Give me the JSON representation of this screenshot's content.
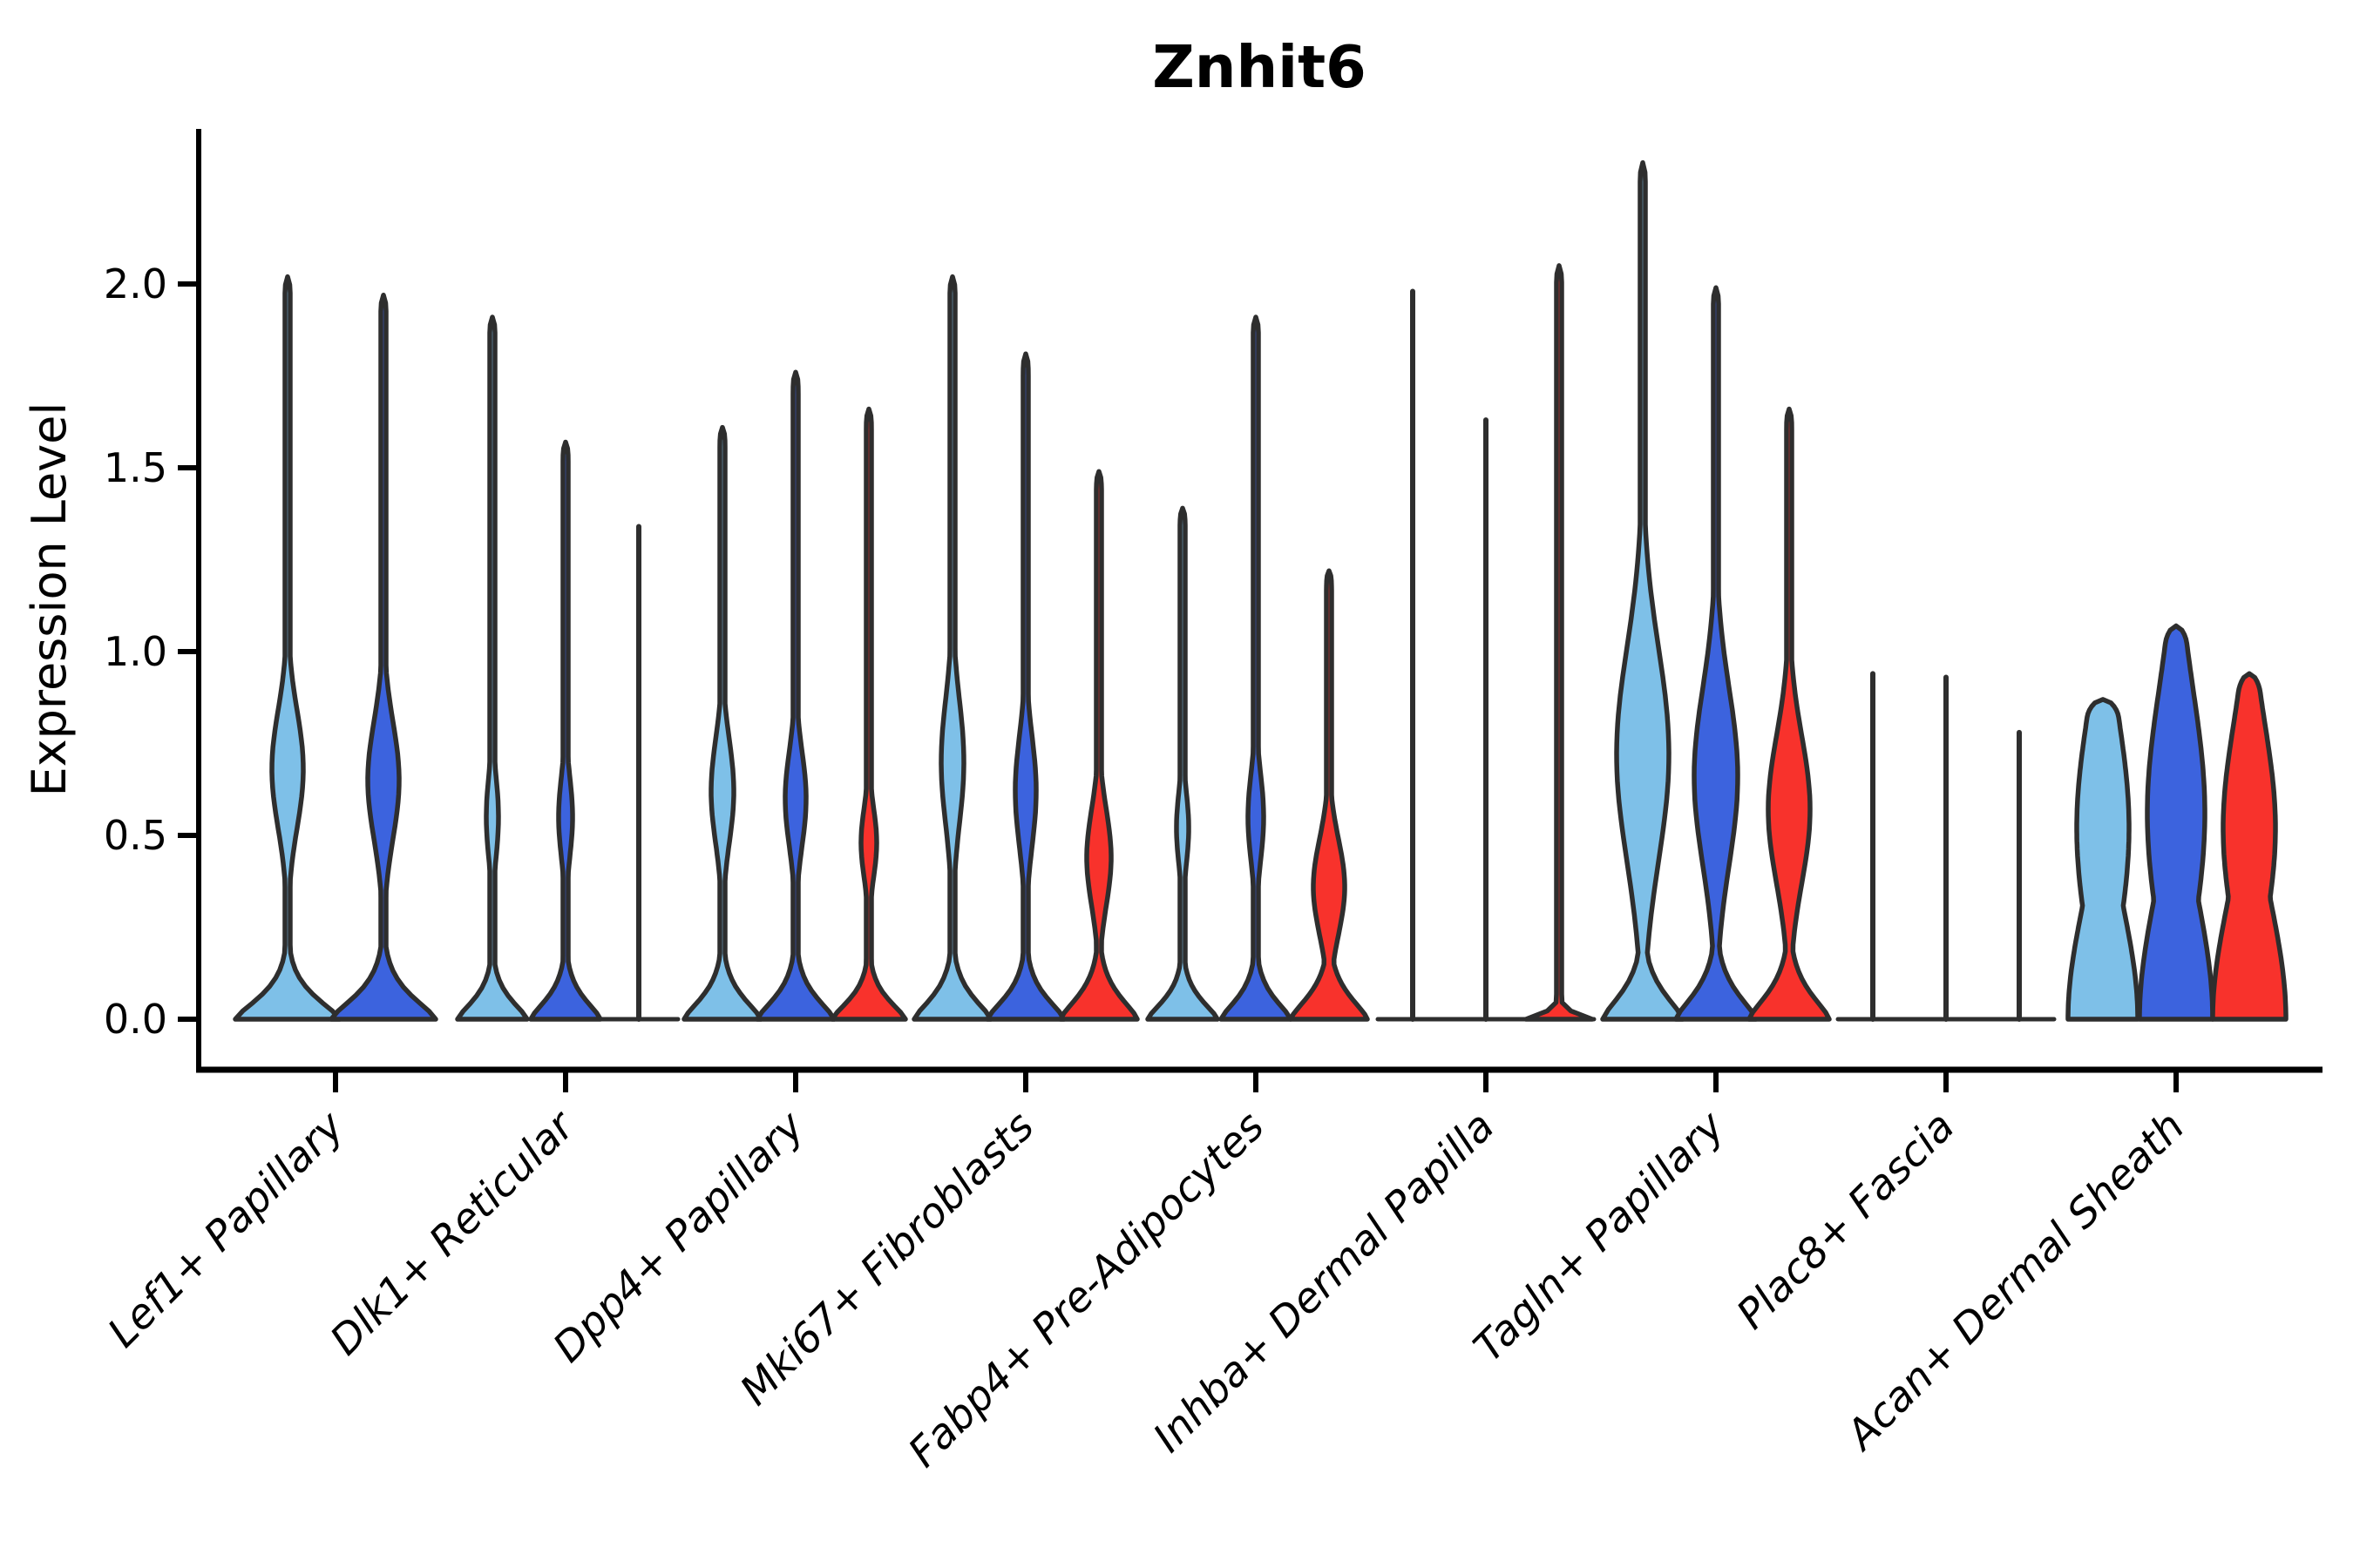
{
  "chart_data": {
    "type": "violin",
    "title": "Znhit6",
    "ylabel": "Expression Level",
    "xlabel": "",
    "grid": false,
    "legend": "none",
    "ylim": [
      -0.14,
      2.42
    ],
    "yticks": [
      {
        "v": 0.0,
        "label": "0.0"
      },
      {
        "v": 0.5,
        "label": "0.5"
      },
      {
        "v": 1.0,
        "label": "1.0"
      },
      {
        "v": 1.5,
        "label": "1.5"
      },
      {
        "v": 2.0,
        "label": "2.0"
      }
    ],
    "series": [
      {
        "id": "skyblue",
        "color": "#7EC0E8"
      },
      {
        "id": "royalblue",
        "color": "#3C63DE"
      },
      {
        "id": "red",
        "color": "#F8322C"
      }
    ],
    "outline_color": "#2E2E2E",
    "categories": [
      "Lef1+ Papillary",
      "Dlk1+ Reticular",
      "Dpp4+ Papillary",
      "Mki67+ Fibroblasts",
      "Fabp4+ Pre-Adipocytes",
      "Inhba+ Dermal Papilla",
      "Tagln+ Papillary",
      "Plac8+ Fascia",
      "Acan+ Dermal Sheath"
    ],
    "groups": [
      {
        "label": "Lef1+ Papillary",
        "group_baseline": false,
        "violins": [
          {
            "series": "skyblue",
            "kind": "violin",
            "peak": 2.02,
            "shape": {
              "base_hw": 60,
              "base_sig": 0.085,
              "base_pow": 1.4,
              "bulge_c": 0.68,
              "bulge_hw": 18,
              "bulge_sig": 0.16
            }
          },
          {
            "series": "royalblue",
            "kind": "violin",
            "peak": 1.97,
            "shape": {
              "base_hw": 60,
              "base_sig": 0.09,
              "base_pow": 1.4,
              "bulge_c": 0.65,
              "bulge_hw": 18,
              "bulge_sig": 0.16
            }
          }
        ]
      },
      {
        "label": "Dlk1+ Reticular",
        "group_baseline": false,
        "violins": [
          {
            "series": "skyblue",
            "kind": "violin",
            "peak": 1.91,
            "shape": {
              "base_hw": 40,
              "base_sig": 0.075,
              "base_pow": 1.4,
              "bulge_c": 0.55,
              "bulge_hw": 7,
              "bulge_sig": 0.11
            }
          },
          {
            "series": "royalblue",
            "kind": "violin",
            "peak": 1.57,
            "shape": {
              "base_hw": 40,
              "base_sig": 0.08,
              "base_pow": 1.4,
              "bulge_c": 0.55,
              "bulge_hw": 8,
              "bulge_sig": 0.11
            }
          },
          {
            "series": "red",
            "kind": "line",
            "peak": 1.34,
            "baseline_hw": 45
          }
        ]
      },
      {
        "label": "Dpp4+ Papillary",
        "group_baseline": false,
        "violins": [
          {
            "series": "skyblue",
            "kind": "violin",
            "peak": 1.61,
            "shape": {
              "base_hw": 44,
              "base_sig": 0.085,
              "base_pow": 1.4,
              "bulge_c": 0.62,
              "bulge_hw": 13,
              "bulge_sig": 0.14
            }
          },
          {
            "series": "royalblue",
            "kind": "violin",
            "peak": 1.76,
            "shape": {
              "base_hw": 44,
              "base_sig": 0.085,
              "base_pow": 1.4,
              "bulge_c": 0.6,
              "bulge_hw": 12,
              "bulge_sig": 0.13
            }
          },
          {
            "series": "red",
            "kind": "violin",
            "peak": 1.66,
            "shape": {
              "base_hw": 42,
              "base_sig": 0.075,
              "base_pow": 1.4,
              "bulge_c": 0.48,
              "bulge_hw": 9,
              "bulge_sig": 0.095
            }
          }
        ]
      },
      {
        "label": "Mki67+ Fibroblasts",
        "group_baseline": false,
        "violins": [
          {
            "series": "skyblue",
            "kind": "violin",
            "peak": 2.02,
            "shape": {
              "base_hw": 44,
              "base_sig": 0.085,
              "base_pow": 1.4,
              "bulge_c": 0.7,
              "bulge_hw": 13,
              "bulge_sig": 0.17
            }
          },
          {
            "series": "royalblue",
            "kind": "violin",
            "peak": 1.81,
            "shape": {
              "base_hw": 44,
              "base_sig": 0.085,
              "base_pow": 1.4,
              "bulge_c": 0.62,
              "bulge_hw": 12,
              "bulge_sig": 0.15
            }
          },
          {
            "series": "red",
            "kind": "violin",
            "peak": 1.49,
            "shape": {
              "base_hw": 44,
              "base_sig": 0.09,
              "base_pow": 1.4,
              "bulge_c": 0.44,
              "bulge_hw": 14,
              "bulge_sig": 0.13
            }
          }
        ]
      },
      {
        "label": "Fabp4+ Pre-Adipocytes",
        "group_baseline": false,
        "violins": [
          {
            "series": "skyblue",
            "kind": "violin",
            "peak": 1.39,
            "shape": {
              "base_hw": 40,
              "base_sig": 0.075,
              "base_pow": 1.4,
              "bulge_c": 0.52,
              "bulge_hw": 7,
              "bulge_sig": 0.1
            }
          },
          {
            "series": "royalblue",
            "kind": "violin",
            "peak": 1.91,
            "shape": {
              "base_hw": 40,
              "base_sig": 0.08,
              "base_pow": 1.4,
              "bulge_c": 0.55,
              "bulge_hw": 9,
              "bulge_sig": 0.12
            }
          },
          {
            "series": "red",
            "kind": "violin",
            "peak": 1.22,
            "shape": {
              "base_hw": 44,
              "base_sig": 0.09,
              "base_pow": 1.4,
              "bulge_c": 0.36,
              "bulge_hw": 18,
              "bulge_sig": 0.13
            }
          }
        ]
      },
      {
        "label": "Inhba+ Dermal Papilla",
        "group_baseline": true,
        "violins": [
          {
            "series": "skyblue",
            "kind": "line",
            "peak": 1.98
          },
          {
            "series": "royalblue",
            "kind": "line",
            "peak": 1.63
          },
          {
            "series": "red",
            "kind": "violin",
            "peak": 2.05,
            "shape": {
              "base_hw": 38,
              "base_sig": 0.022,
              "base_pow": 1.2,
              "bulge_c": 0.02,
              "bulge_hw": 0,
              "bulge_sig": 1
            }
          }
        ]
      },
      {
        "label": "Tagln+ Papillary",
        "group_baseline": false,
        "violins": [
          {
            "series": "skyblue",
            "kind": "violin",
            "peak": 2.33,
            "shape": {
              "base_hw": 46,
              "base_sig": 0.1,
              "base_pow": 1.4,
              "bulge_c": 0.72,
              "bulge_hw": 30,
              "bulge_sig": 0.29
            }
          },
          {
            "series": "royalblue",
            "kind": "violin",
            "peak": 1.99,
            "shape": {
              "base_hw": 46,
              "base_sig": 0.1,
              "base_pow": 1.4,
              "bulge_c": 0.66,
              "bulge_hw": 25,
              "bulge_sig": 0.24
            }
          },
          {
            "series": "red",
            "kind": "violin",
            "peak": 1.66,
            "shape": {
              "base_hw": 46,
              "base_sig": 0.1,
              "base_pow": 1.4,
              "bulge_c": 0.57,
              "bulge_hw": 24,
              "bulge_sig": 0.2
            }
          }
        ]
      },
      {
        "label": "Plac8+ Fascia",
        "group_baseline": true,
        "violins": [
          {
            "series": "skyblue",
            "kind": "line",
            "peak": 0.94
          },
          {
            "series": "royalblue",
            "kind": "line",
            "peak": 0.93
          },
          {
            "series": "red",
            "kind": "line",
            "peak": 0.78
          }
        ]
      },
      {
        "label": "Acan+ Dermal Sheath",
        "group_baseline": false,
        "violins": [
          {
            "series": "skyblue",
            "kind": "violin",
            "peak": 0.87,
            "shape": {
              "base_hw": 40,
              "base_sig": 0.42,
              "base_pow": 2.0,
              "bulge_c": 0.52,
              "bulge_hw": 30,
              "bulge_sig": 0.3
            }
          },
          {
            "series": "royalblue",
            "kind": "violin",
            "peak": 1.07,
            "shape": {
              "base_hw": 42,
              "base_sig": 0.46,
              "base_pow": 2.0,
              "bulge_c": 0.56,
              "bulge_hw": 33,
              "bulge_sig": 0.33
            }
          },
          {
            "series": "red",
            "kind": "violin",
            "peak": 0.94,
            "shape": {
              "base_hw": 42,
              "base_sig": 0.44,
              "base_pow": 2.0,
              "bulge_c": 0.52,
              "bulge_hw": 30,
              "bulge_sig": 0.28
            }
          }
        ]
      }
    ]
  }
}
